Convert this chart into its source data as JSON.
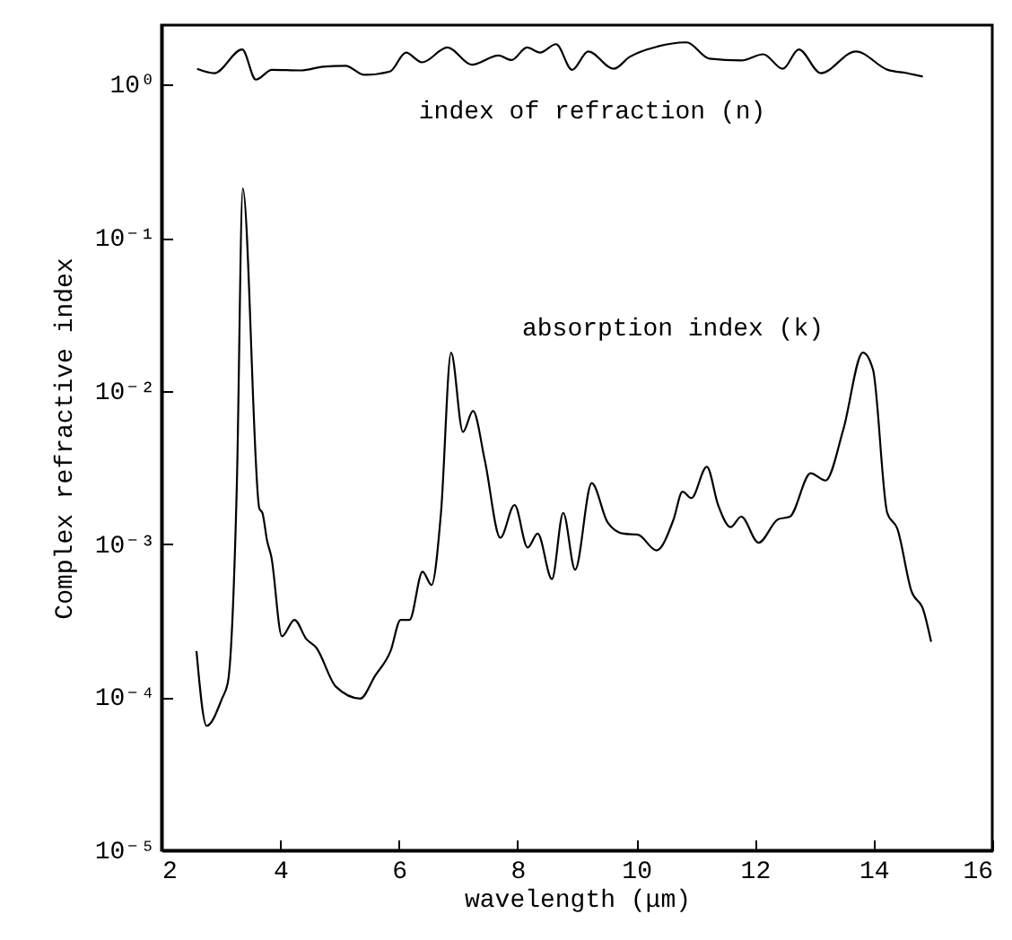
{
  "chart_data": {
    "type": "line",
    "xlabel": "wavelength (μm)",
    "ylabel": "Complex refractive index",
    "log": "y",
    "grid": false,
    "legend": false,
    "marker": "none",
    "line_style": "solid",
    "xlim": [
      2,
      16
    ],
    "xticks": [
      2,
      4,
      6,
      8,
      10,
      12,
      14,
      16
    ],
    "ylim": [
      1e-05,
      2.45
    ],
    "yticks": [
      {
        "value": 1,
        "label": "10⁰"
      },
      {
        "value": 0.1,
        "label": "10⁻¹"
      },
      {
        "value": 0.01,
        "label": "10⁻²"
      },
      {
        "value": 0.001,
        "label": "10⁻³"
      },
      {
        "value": 0.0001,
        "label": "10⁻⁴"
      },
      {
        "value": 1e-05,
        "label": "10⁻⁵"
      }
    ],
    "series": [
      {
        "name": "index of refraction (n)",
        "color": "#000000",
        "x": [
          2.6,
          2.89,
          3.36,
          3.59,
          3.86,
          4.35,
          4.72,
          5.1,
          5.42,
          5.85,
          6.12,
          6.39,
          6.82,
          7.23,
          7.68,
          7.9,
          8.16,
          8.38,
          8.65,
          8.92,
          9.19,
          9.62,
          9.89,
          10.37,
          10.85,
          11.23,
          11.77,
          12.14,
          12.47,
          12.74,
          13.11,
          13.7,
          14.24,
          14.56,
          14.83
        ],
        "values": [
          1.27,
          1.19,
          1.7,
          1.08,
          1.25,
          1.24,
          1.31,
          1.33,
          1.16,
          1.22,
          1.62,
          1.4,
          1.75,
          1.35,
          1.55,
          1.45,
          1.75,
          1.62,
          1.84,
          1.25,
          1.65,
          1.27,
          1.52,
          1.78,
          1.89,
          1.48,
          1.44,
          1.58,
          1.27,
          1.7,
          1.19,
          1.65,
          1.25,
          1.19,
          1.13
        ]
      },
      {
        "name": "absorption index (k)",
        "color": "#000000",
        "x": [
          2.59,
          2.76,
          3.02,
          3.12,
          3.27,
          3.37,
          3.65,
          3.7,
          3.78,
          3.85,
          4.03,
          4.24,
          4.44,
          4.61,
          4.94,
          5.35,
          5.6,
          5.86,
          6.03,
          6.18,
          6.4,
          6.55,
          6.71,
          6.88,
          7.08,
          7.25,
          7.45,
          7.71,
          7.95,
          8.17,
          8.34,
          8.58,
          8.77,
          8.97,
          9.25,
          9.52,
          9.78,
          10.03,
          10.34,
          10.63,
          10.78,
          10.93,
          11.19,
          11.38,
          11.59,
          11.77,
          12.06,
          12.39,
          12.59,
          12.94,
          13.19,
          13.49,
          13.82,
          13.99,
          14.23,
          14.4,
          14.64,
          14.84,
          14.97
        ],
        "values": [
          0.0002,
          6.5e-05,
          9.8e-05,
          0.000126,
          0.00245,
          0.21,
          0.0017,
          0.0016,
          0.00105,
          0.00083,
          0.00025,
          0.00032,
          0.00024,
          0.00021,
          0.000117,
          9.8e-05,
          0.000138,
          0.0002,
          0.00032,
          0.00032,
          0.00066,
          0.00054,
          0.0016,
          0.0178,
          0.0054,
          0.0074,
          0.0035,
          0.0011,
          0.0018,
          0.00095,
          0.00117,
          0.00059,
          0.0016,
          0.00068,
          0.0025,
          0.00138,
          0.00117,
          0.00115,
          0.00091,
          0.00145,
          0.0022,
          0.002,
          0.0032,
          0.0018,
          0.00129,
          0.00151,
          0.00102,
          0.00145,
          0.00151,
          0.0029,
          0.0026,
          0.0056,
          0.0178,
          0.0138,
          0.0016,
          0.00126,
          0.00049,
          0.00037,
          0.00023
        ]
      }
    ]
  }
}
